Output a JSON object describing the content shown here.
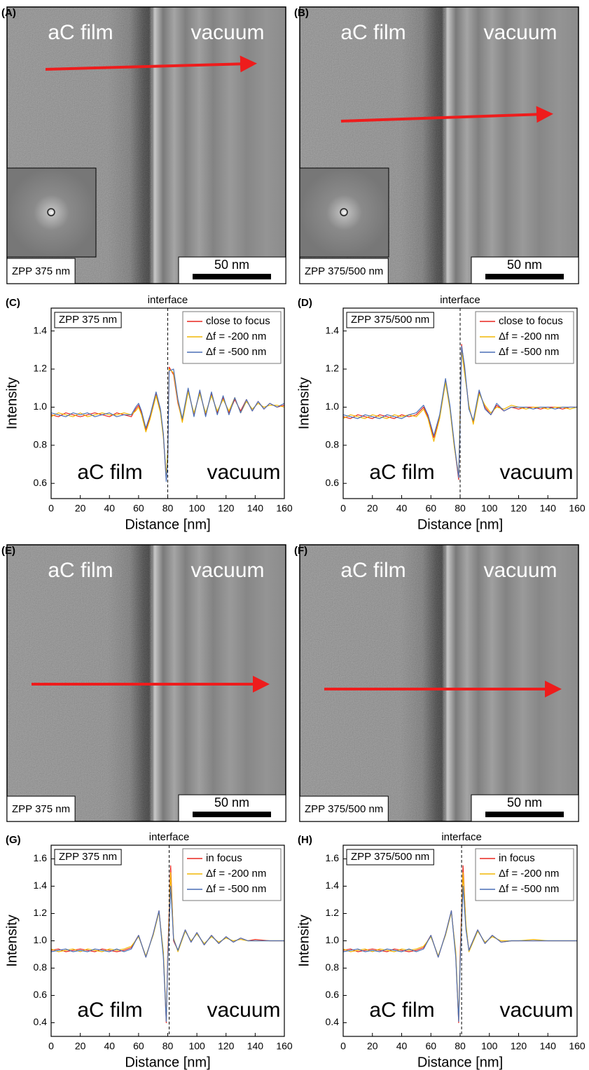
{
  "images": [
    {
      "label": "(A)",
      "left_text": "aC film",
      "right_text": "vacuum",
      "setting": "ZPP 375 nm",
      "scale_bar": "50 nm"
    },
    {
      "label": "(B)",
      "left_text": "aC film",
      "right_text": "vacuum",
      "setting": "ZPP 375/500 nm",
      "scale_bar": "50 nm"
    },
    {
      "label": "(E)",
      "left_text": "aC film",
      "right_text": "vacuum",
      "setting": "ZPP 375 nm",
      "scale_bar": "50 nm"
    },
    {
      "label": "(F)",
      "left_text": "aC film",
      "right_text": "vacuum",
      "setting": "ZPP 375/500 nm",
      "scale_bar": "50 nm"
    }
  ],
  "chart_data": [
    {
      "type": "line",
      "panel": "(C)",
      "annotation": "interface",
      "interface_x": 80,
      "setting": "ZPP 375 nm",
      "region_labels": [
        "aC film",
        "vacuum"
      ],
      "xlabel": "Distance [nm]",
      "ylabel": "Intensity",
      "legend": "upper right",
      "xlim": [
        0,
        160
      ],
      "xticks": [
        0,
        20,
        40,
        60,
        80,
        100,
        120,
        140,
        160
      ],
      "ylim": [
        0.52,
        1.52
      ],
      "yticks": [
        0.6,
        0.8,
        {
          "value": 1,
          "label": "1.0"
        },
        1.2,
        1.4
      ],
      "x": [
        0,
        5,
        10,
        15,
        20,
        25,
        30,
        35,
        40,
        45,
        50,
        55,
        58,
        60,
        62,
        65,
        68,
        72,
        75,
        77,
        79,
        80,
        81,
        84,
        87,
        90,
        94,
        98,
        102,
        106,
        110,
        114,
        118,
        122,
        126,
        130,
        134,
        138,
        142,
        146,
        150,
        155,
        160
      ],
      "series": [
        {
          "name": "close to focus",
          "color": "#e8261f",
          "values": [
            0.96,
            0.95,
            0.97,
            0.96,
            0.95,
            0.96,
            0.97,
            0.96,
            0.95,
            0.97,
            0.96,
            0.95,
            0.99,
            1.01,
            0.97,
            0.88,
            0.95,
            1.07,
            0.98,
            0.85,
            0.62,
            0.75,
            1.21,
            1.17,
            1.02,
            0.93,
            1.09,
            0.96,
            1.08,
            0.96,
            1.07,
            0.97,
            1.05,
            0.97,
            1.04,
            0.98,
            1.04,
            0.98,
            1.03,
            0.99,
            1.02,
            1.0,
            1.01
          ]
        },
        {
          "name": "Δf = -200 nm",
          "color": "#f2b705",
          "values": [
            0.95,
            0.97,
            0.96,
            0.95,
            0.97,
            0.95,
            0.96,
            0.97,
            0.96,
            0.96,
            0.97,
            0.96,
            0.98,
            1.0,
            0.96,
            0.87,
            0.94,
            1.06,
            0.97,
            0.84,
            0.64,
            0.78,
            1.2,
            1.18,
            1.03,
            0.92,
            1.08,
            0.97,
            1.07,
            0.97,
            1.06,
            0.98,
            1.04,
            0.98,
            1.05,
            0.97,
            1.03,
            0.99,
            1.02,
            1.0,
            1.01,
            1.01,
            1.0
          ]
        },
        {
          "name": "Δf = -500 nm",
          "color": "#4a6fb5",
          "values": [
            0.97,
            0.96,
            0.95,
            0.97,
            0.96,
            0.97,
            0.95,
            0.96,
            0.97,
            0.95,
            0.96,
            0.96,
            1.0,
            1.02,
            0.98,
            0.89,
            0.96,
            1.08,
            0.99,
            0.86,
            0.61,
            0.72,
            1.19,
            1.2,
            1.04,
            0.94,
            1.1,
            0.95,
            1.09,
            0.95,
            1.08,
            0.96,
            1.06,
            0.96,
            1.05,
            0.97,
            1.04,
            0.98,
            1.03,
            0.99,
            1.02,
            1.0,
            1.02
          ]
        }
      ]
    },
    {
      "type": "line",
      "panel": "(D)",
      "annotation": "interface",
      "interface_x": 80,
      "setting": "ZPP 375/500 nm",
      "region_labels": [
        "aC film",
        "vacuum"
      ],
      "xlabel": "Distance [nm]",
      "ylabel": "Intensity",
      "legend": "upper right",
      "xlim": [
        0,
        160
      ],
      "xticks": [
        0,
        20,
        40,
        60,
        80,
        100,
        120,
        140,
        160
      ],
      "ylim": [
        0.52,
        1.52
      ],
      "yticks": [
        0.6,
        0.8,
        {
          "value": 1,
          "label": "1.0"
        },
        1.2,
        1.4
      ],
      "x": [
        0,
        5,
        10,
        15,
        20,
        25,
        30,
        35,
        40,
        45,
        50,
        55,
        58,
        62,
        66,
        70,
        73,
        76,
        79,
        80,
        81,
        83,
        86,
        89,
        93,
        97,
        101,
        105,
        110,
        115,
        120,
        125,
        130,
        135,
        140,
        145,
        150,
        155,
        160
      ],
      "series": [
        {
          "name": "close to focus",
          "color": "#e8261f",
          "values": [
            0.95,
            0.94,
            0.96,
            0.95,
            0.94,
            0.96,
            0.95,
            0.94,
            0.96,
            0.95,
            0.96,
            1.0,
            0.95,
            0.84,
            0.95,
            1.14,
            1.0,
            0.8,
            0.62,
            0.95,
            1.33,
            1.2,
            1.0,
            0.92,
            1.08,
            1.0,
            0.96,
            1.01,
            0.98,
            1.0,
            0.99,
            1.0,
            1.0,
            0.99,
            1.0,
            1.0,
            0.99,
            1.0,
            1.0
          ]
        },
        {
          "name": "Δf = -200 nm",
          "color": "#f2b705",
          "values": [
            0.94,
            0.96,
            0.95,
            0.94,
            0.96,
            0.95,
            0.94,
            0.96,
            0.95,
            0.96,
            0.95,
            0.99,
            0.94,
            0.82,
            0.94,
            1.13,
            0.99,
            0.79,
            0.64,
            0.98,
            1.3,
            1.18,
            1.01,
            0.91,
            1.07,
            1.01,
            0.97,
            1.0,
            0.99,
            1.01,
            1.0,
            0.99,
            1.0,
            1.0,
            0.99,
            1.0,
            1.0,
            0.99,
            1.0
          ]
        },
        {
          "name": "Δf = -500 nm",
          "color": "#4a6fb5",
          "values": [
            0.96,
            0.95,
            0.94,
            0.96,
            0.95,
            0.94,
            0.96,
            0.95,
            0.94,
            0.96,
            0.97,
            1.01,
            0.96,
            0.85,
            0.96,
            1.15,
            1.01,
            0.81,
            0.63,
            0.93,
            1.32,
            1.22,
            0.99,
            0.93,
            1.09,
            0.99,
            0.96,
            1.02,
            0.98,
            1.0,
            1.0,
            1.0,
            0.99,
            1.0,
            1.0,
            0.99,
            1.0,
            1.0,
            1.0
          ]
        }
      ]
    },
    {
      "type": "line",
      "panel": "(G)",
      "annotation": "interface",
      "interface_x": 81,
      "setting": "ZPP 375 nm",
      "region_labels": [
        "aC film",
        "vacuum"
      ],
      "xlabel": "Distance [nm]",
      "ylabel": "Intensity",
      "legend": "upper right",
      "xlim": [
        0,
        160
      ],
      "xticks": [
        0,
        20,
        40,
        60,
        80,
        100,
        120,
        140,
        160
      ],
      "ylim": [
        0.3,
        1.7
      ],
      "yticks": [
        0.4,
        0.6,
        0.8,
        {
          "value": 1,
          "label": "1.0"
        },
        1.2,
        1.4,
        1.6
      ],
      "x": [
        0,
        5,
        10,
        15,
        20,
        25,
        30,
        35,
        40,
        45,
        50,
        55,
        60,
        65,
        70,
        74,
        77,
        79,
        80,
        82,
        84,
        87,
        92,
        96,
        100,
        105,
        110,
        115,
        120,
        125,
        130,
        135,
        140,
        150,
        160
      ],
      "series": [
        {
          "name": "in focus",
          "color": "#e8261f",
          "values": [
            0.93,
            0.94,
            0.92,
            0.93,
            0.94,
            0.93,
            0.92,
            0.94,
            0.93,
            0.92,
            0.93,
            0.95,
            1.04,
            0.88,
            1.05,
            1.22,
            0.9,
            0.4,
            0.9,
            1.55,
            1.0,
            0.93,
            1.08,
            0.99,
            1.06,
            0.97,
            1.04,
            0.98,
            1.03,
            0.99,
            1.02,
            1.0,
            1.01,
            1.0,
            1.0
          ]
        },
        {
          "name": "Δf = -200 nm",
          "color": "#f2b705",
          "values": [
            0.94,
            0.92,
            0.93,
            0.94,
            0.92,
            0.94,
            0.93,
            0.92,
            0.94,
            0.93,
            0.94,
            0.96,
            1.03,
            0.89,
            1.04,
            1.21,
            0.92,
            0.42,
            0.86,
            1.5,
            1.02,
            0.92,
            1.07,
            1.0,
            1.05,
            0.98,
            1.03,
            0.99,
            1.02,
            1.0,
            1.01,
            1.0,
            1.0,
            1.0,
            1.0
          ]
        },
        {
          "name": "Δf = -500 nm",
          "color": "#4a6fb5",
          "values": [
            0.92,
            0.93,
            0.94,
            0.92,
            0.93,
            0.92,
            0.94,
            0.93,
            0.92,
            0.94,
            0.92,
            0.94,
            1.04,
            0.88,
            1.05,
            1.22,
            0.88,
            0.41,
            0.84,
            1.4,
            1.01,
            0.93,
            1.08,
            0.99,
            1.06,
            0.97,
            1.04,
            0.98,
            1.03,
            0.99,
            1.02,
            1.0,
            1.0,
            1.0,
            1.0
          ]
        }
      ]
    },
    {
      "type": "line",
      "panel": "(H)",
      "annotation": "interface",
      "interface_x": 81,
      "setting": "ZPP 375/500 nm",
      "region_labels": [
        "aC film",
        "vacuum"
      ],
      "xlabel": "Distance [nm]",
      "ylabel": "Intensity",
      "legend": "upper right",
      "xlim": [
        0,
        160
      ],
      "xticks": [
        0,
        20,
        40,
        60,
        80,
        100,
        120,
        140,
        160
      ],
      "ylim": [
        0.3,
        1.7
      ],
      "yticks": [
        0.4,
        0.6,
        0.8,
        {
          "value": 1,
          "label": "1.0"
        },
        1.2,
        1.4,
        1.6
      ],
      "x": [
        0,
        5,
        10,
        15,
        20,
        25,
        30,
        35,
        40,
        45,
        50,
        55,
        60,
        65,
        70,
        74,
        77,
        79,
        80,
        82,
        84,
        86,
        92,
        97,
        102,
        108,
        115,
        120,
        130,
        140,
        150,
        160
      ],
      "series": [
        {
          "name": "in focus",
          "color": "#e8261f",
          "values": [
            0.93,
            0.94,
            0.92,
            0.93,
            0.94,
            0.93,
            0.92,
            0.94,
            0.93,
            0.92,
            0.93,
            0.95,
            1.04,
            0.88,
            1.05,
            1.22,
            0.9,
            0.4,
            0.9,
            1.55,
            1.1,
            0.93,
            1.08,
            0.98,
            1.04,
            0.99,
            1.0,
            1.0,
            1.0,
            1.0,
            1.0,
            1.0
          ]
        },
        {
          "name": "Δf = -200 nm",
          "color": "#f2b705",
          "values": [
            0.94,
            0.92,
            0.93,
            0.94,
            0.92,
            0.94,
            0.93,
            0.92,
            0.94,
            0.93,
            0.94,
            0.96,
            1.03,
            0.89,
            1.04,
            1.21,
            0.92,
            0.42,
            0.86,
            1.5,
            1.12,
            0.92,
            1.07,
            0.99,
            1.03,
            1.0,
            1.0,
            1.0,
            1.01,
            1.0,
            1.0,
            1.0
          ]
        },
        {
          "name": "Δf = -500 nm",
          "color": "#4a6fb5",
          "values": [
            0.92,
            0.93,
            0.94,
            0.92,
            0.93,
            0.92,
            0.94,
            0.93,
            0.92,
            0.94,
            0.92,
            0.94,
            1.04,
            0.88,
            1.05,
            1.22,
            0.88,
            0.41,
            0.84,
            1.4,
            1.08,
            0.93,
            1.08,
            0.98,
            1.04,
            0.99,
            1.0,
            1.0,
            1.0,
            1.0,
            1.0,
            1.0
          ]
        }
      ]
    }
  ]
}
